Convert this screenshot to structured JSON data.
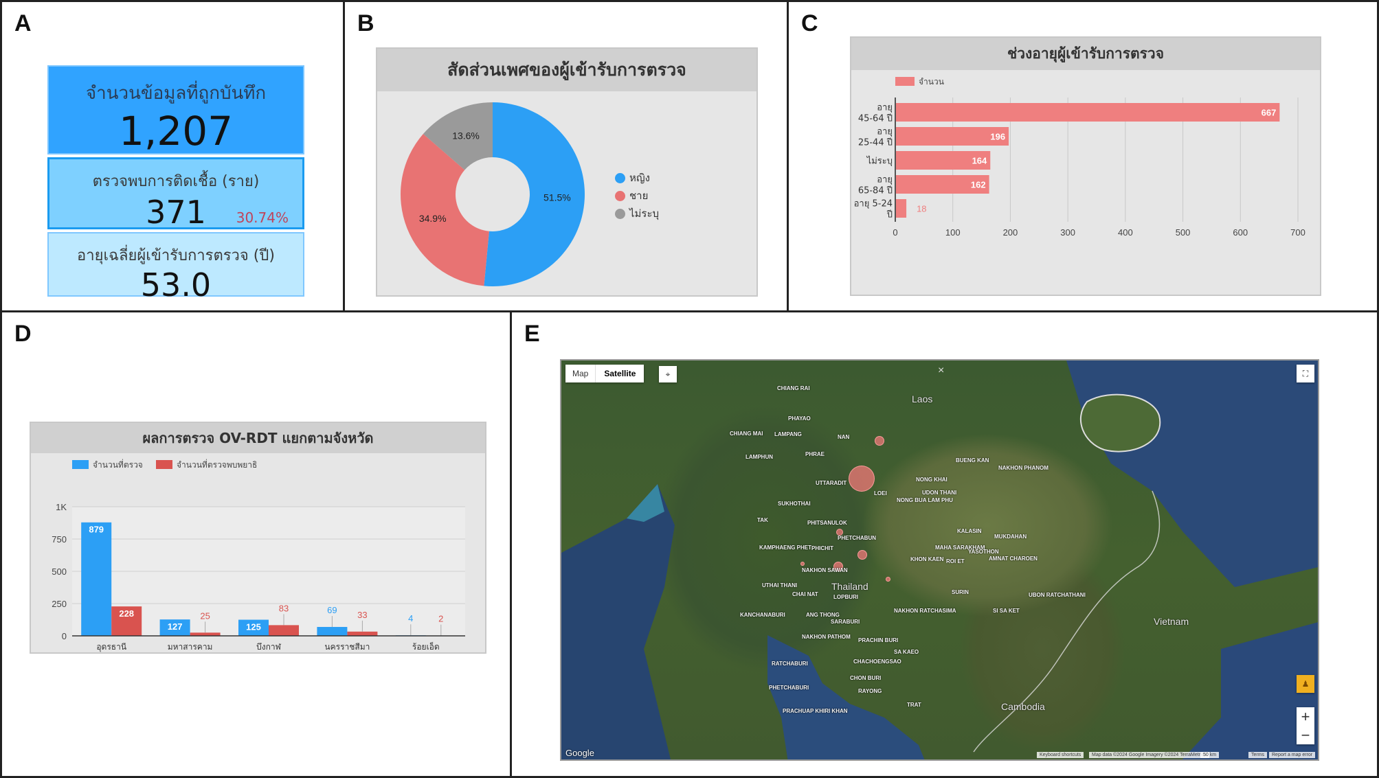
{
  "panels": {
    "a": "A",
    "b": "B",
    "c": "C",
    "d": "D",
    "e": "E"
  },
  "stats": {
    "records": {
      "title": "จำนวนข้อมูลที่ถูกบันทึก",
      "value": "1,207"
    },
    "infected": {
      "title": "ตรวจพบการติดเชื้อ (ราย)",
      "value": "371",
      "percent": "30.74%"
    },
    "avg_age": {
      "title": "อายุเฉลี่ยผู้เข้ารับการตรวจ (ปี)",
      "value": "53.0"
    }
  },
  "colors": {
    "blue": "#2c9ff5",
    "red_bar": "#d9534f",
    "salmon": "#ef7f7f",
    "grey": "#9a9a9a",
    "pie_red": "#e87373"
  },
  "chart_data": [
    {
      "type": "pie",
      "title": "สัดส่วนเพศของผู้เข้ารับการตรวจ",
      "categories": [
        "หญิง",
        "ชาย",
        "ไม่ระบุ"
      ],
      "values": [
        51.5,
        34.9,
        13.6
      ],
      "labels": [
        "51.5%",
        "34.9%",
        "13.6%"
      ],
      "legend": "right"
    },
    {
      "type": "bar",
      "orientation": "horizontal",
      "title": "ช่วงอายุผู้เข้ารับการตรวจ",
      "categories": [
        [
          "อายุ",
          "45-64 ปี"
        ],
        [
          "อายุ",
          "25-44 ปี"
        ],
        [
          "ไม่ระบุ"
        ],
        [
          "อายุ",
          "65-84 ปี"
        ],
        [
          "อายุ 5-24",
          "ปี"
        ]
      ],
      "series": [
        {
          "name": "จำนวน",
          "values": [
            667,
            196,
            164,
            162,
            18
          ]
        }
      ],
      "xlim": [
        0,
        700
      ],
      "xticks": [
        "0",
        "100",
        "200",
        "300",
        "400",
        "500",
        "600",
        "700"
      ],
      "grid": true,
      "legend": "top-left"
    },
    {
      "type": "bar",
      "title": "ผลการตรวจ OV-RDT แยกตามจังหวัด",
      "categories": [
        "อุดรธานี",
        "มหาสารคาม",
        "บึงกาฬ",
        "นครราชสีมา",
        "ร้อยเอ็ด"
      ],
      "series": [
        {
          "name": "จำนวนที่ตรวจ",
          "values": [
            879,
            127,
            125,
            69,
            4
          ]
        },
        {
          "name": "จำนวนที่ตรวจพบพยาธิ",
          "values": [
            228,
            25,
            83,
            33,
            2
          ]
        }
      ],
      "ylim": [
        0,
        1000
      ],
      "yticks": [
        "0",
        "250",
        "500",
        "750",
        "1K"
      ],
      "grid": true,
      "legend": "top-left"
    }
  ],
  "map": {
    "type_map": "Map",
    "type_satellite": "Satellite",
    "close": "×",
    "zoom_in": "+",
    "zoom_out": "−",
    "google": "Google",
    "attribution": [
      "Keyboard shortcuts",
      "Map data ©2024 Google Imagery ©2024 TerraMetrics",
      "50 km",
      "Terms",
      "Report a map error"
    ],
    "countries": [
      "Laos",
      "Thailand",
      "Cambodia",
      "Vietnam"
    ],
    "places": [
      "CHIANG RAI",
      "PHAYAO",
      "CHIANG MAI",
      "LAMPANG",
      "NAN",
      "LAMPHUN",
      "PHRAE",
      "UTTARADIT",
      "BUENG KAN",
      "NONG KHAI",
      "NAKHON PHANOM",
      "LOEI",
      "UDON THANI",
      "NONG BUA LAM PHU",
      "SUKHOTHAI",
      "TAK",
      "PHITSANULOK",
      "KALASIN",
      "MUKDAHAN",
      "PHETCHABUN",
      "KAMPHAENG PHET",
      "PHICHIT",
      "KHON KAEN",
      "MAHA SARAKHAM",
      "YASOTHON",
      "ROI ET",
      "AMNAT CHAROEN",
      "NAKHON SAWAN",
      "UTHAI THANI",
      "CHAI NAT",
      "LOPBURI",
      "SURIN",
      "UBON RATCHATHANI",
      "KANCHANABURI",
      "ANG THONG",
      "SARABURI",
      "NAKHON RATCHASIMA",
      "SI SA KET",
      "NAKHON PATHOM",
      "PRACHIN BURI",
      "SA KAEO",
      "RATCHABURI",
      "CHACHOENGSAO",
      "CHON BURI",
      "PHETCHABURI",
      "RAYONG",
      "TRAT",
      "PRACHUAP KHIRI KHAN"
    ]
  }
}
